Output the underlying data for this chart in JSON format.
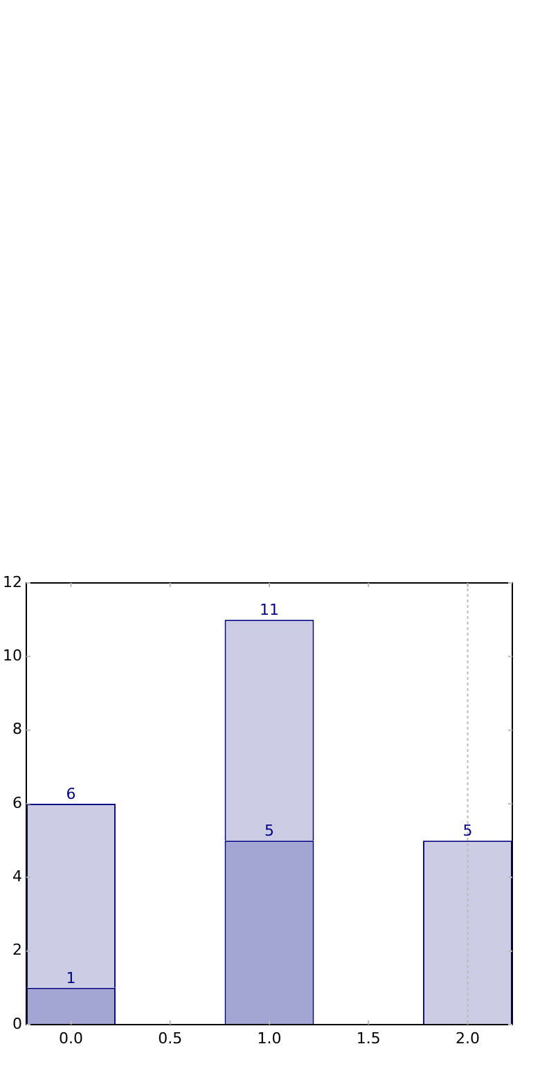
{
  "chart_data": {
    "type": "bar",
    "x": [
      0,
      1,
      2
    ],
    "series": [
      {
        "color": "#a3a5d3",
        "values": [
          1,
          5,
          null
        ],
        "value_labels": [
          "1",
          "5",
          null
        ]
      },
      {
        "color": "#cccce4",
        "values": [
          5,
          6,
          5
        ]
      }
    ],
    "stacked": true,
    "totals": [
      "6",
      "11",
      "5"
    ],
    "xlim": [
      -0.225,
      2.225
    ],
    "xticks": [
      {
        "value": 0,
        "label": "0.0"
      },
      {
        "value": 0.5,
        "label": "0.5"
      },
      {
        "value": 1,
        "label": "1.0"
      },
      {
        "value": 1.5,
        "label": "1.5"
      },
      {
        "value": 2,
        "label": "2.0"
      }
    ],
    "ylim": [
      0,
      12
    ],
    "yticks": [
      0,
      2,
      4,
      6,
      8,
      10,
      12
    ],
    "ref_lines": [
      {
        "axis": "x",
        "value": 2,
        "color": "#bbbbbb",
        "line_style": "dotted"
      }
    ],
    "grid": false,
    "legend": false
  }
}
